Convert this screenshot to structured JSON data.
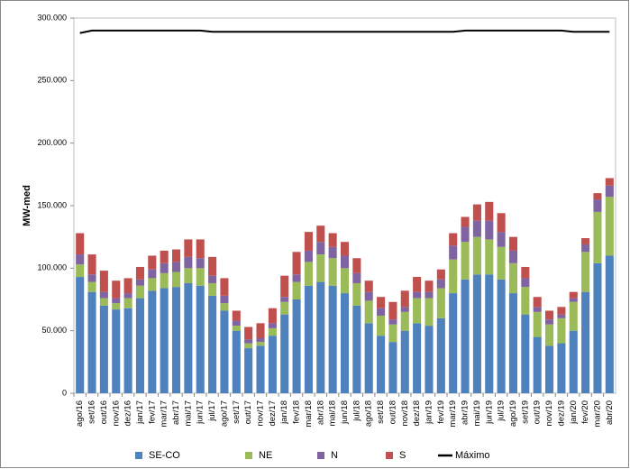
{
  "chart_data": {
    "type": "bar",
    "stacked": true,
    "y_label": "MW-med",
    "categories": [
      "ago/16",
      "set/16",
      "out/16",
      "nov/16",
      "dez/16",
      "jan/17",
      "fev/17",
      "mar/17",
      "abr/17",
      "mai/17",
      "jun/17",
      "jul/17",
      "ago/17",
      "set/17",
      "out/17",
      "nov/17",
      "dez/17",
      "jan/18",
      "fev/18",
      "mar/18",
      "abr/18",
      "mai/18",
      "jun/18",
      "jul/18",
      "ago/18",
      "set/18",
      "out/18",
      "nov/18",
      "dez/18",
      "jan/19",
      "fev/19",
      "mar/19",
      "abr/19",
      "mai/19",
      "jun/19",
      "jul/19",
      "ago/19",
      "set/19",
      "out/19",
      "nov/19",
      "dez/19",
      "jan/20",
      "fev/20",
      "mar/20",
      "abr/20"
    ],
    "series": [
      {
        "name": "SE-CO",
        "color": "#4f81bd",
        "values": [
          93000,
          81000,
          70000,
          67000,
          68000,
          76000,
          82000,
          84000,
          85000,
          88000,
          86000,
          78000,
          66000,
          50000,
          36000,
          38000,
          46000,
          63000,
          75000,
          86000,
          89000,
          86000,
          80000,
          70000,
          56000,
          46000,
          41000,
          50000,
          56000,
          54000,
          60000,
          80000,
          91000,
          95000,
          95000,
          91000,
          80000,
          63000,
          45000,
          38000,
          40000,
          50000,
          81000,
          104000,
          110000
        ]
      },
      {
        "name": "NE",
        "color": "#9bbb59",
        "values": [
          10000,
          8000,
          6000,
          5000,
          8000,
          10000,
          10000,
          12000,
          12000,
          12000,
          14000,
          10000,
          6000,
          4000,
          4000,
          3000,
          6000,
          10000,
          14000,
          19000,
          22000,
          22000,
          20000,
          18000,
          18000,
          16000,
          14000,
          15000,
          20000,
          22000,
          24000,
          27000,
          30000,
          30000,
          28000,
          26000,
          24000,
          22000,
          20000,
          17000,
          20000,
          23000,
          32000,
          41000,
          47000
        ]
      },
      {
        "name": "N",
        "color": "#8064a2",
        "values": [
          8000,
          6000,
          5000,
          4000,
          4000,
          5000,
          7000,
          8000,
          8000,
          9000,
          8000,
          6000,
          6000,
          4000,
          3000,
          3000,
          4000,
          4000,
          6000,
          9000,
          10000,
          9000,
          10000,
          8000,
          7000,
          6000,
          4000,
          4000,
          5000,
          5000,
          7000,
          11000,
          12000,
          13000,
          15000,
          12000,
          10000,
          7000,
          4000,
          4000,
          3000,
          3000,
          6000,
          10000,
          9000
        ]
      },
      {
        "name": "S",
        "color": "#c0504d",
        "values": [
          17000,
          16000,
          17000,
          14000,
          12000,
          10000,
          11000,
          10000,
          10000,
          14000,
          15000,
          15000,
          14000,
          8000,
          10000,
          12000,
          12000,
          17000,
          18000,
          15000,
          13000,
          11000,
          11000,
          12000,
          9000,
          9000,
          14000,
          13000,
          12000,
          9000,
          8000,
          10000,
          8000,
          13000,
          15000,
          15000,
          11000,
          9000,
          8000,
          7000,
          6000,
          5000,
          5000,
          5000,
          6000
        ]
      },
      {
        "name": "Máximo",
        "type": "line",
        "color": "#000000",
        "values": [
          288000,
          290000,
          290000,
          290000,
          290000,
          290000,
          290000,
          290000,
          290000,
          290000,
          290000,
          289000,
          289000,
          289000,
          289000,
          289000,
          289000,
          289000,
          289000,
          289000,
          289000,
          289000,
          289000,
          289000,
          289000,
          289000,
          289000,
          289000,
          289000,
          289000,
          289000,
          289000,
          290000,
          290000,
          290000,
          290000,
          290000,
          290000,
          290000,
          290000,
          290000,
          289000,
          289000,
          289000,
          289000
        ]
      }
    ],
    "ylim": [
      0,
      300000
    ],
    "yticks": [
      0,
      {
        "value": 50000,
        "label": "50.000"
      },
      {
        "value": 100000,
        "label": "100.000"
      },
      {
        "value": 150000,
        "label": "150.000"
      },
      {
        "value": 200000,
        "label": "200.000"
      },
      {
        "value": 250000,
        "label": "250.000"
      },
      {
        "value": 300000,
        "label": "300.000"
      }
    ],
    "grid": false,
    "legend": "bottom"
  }
}
